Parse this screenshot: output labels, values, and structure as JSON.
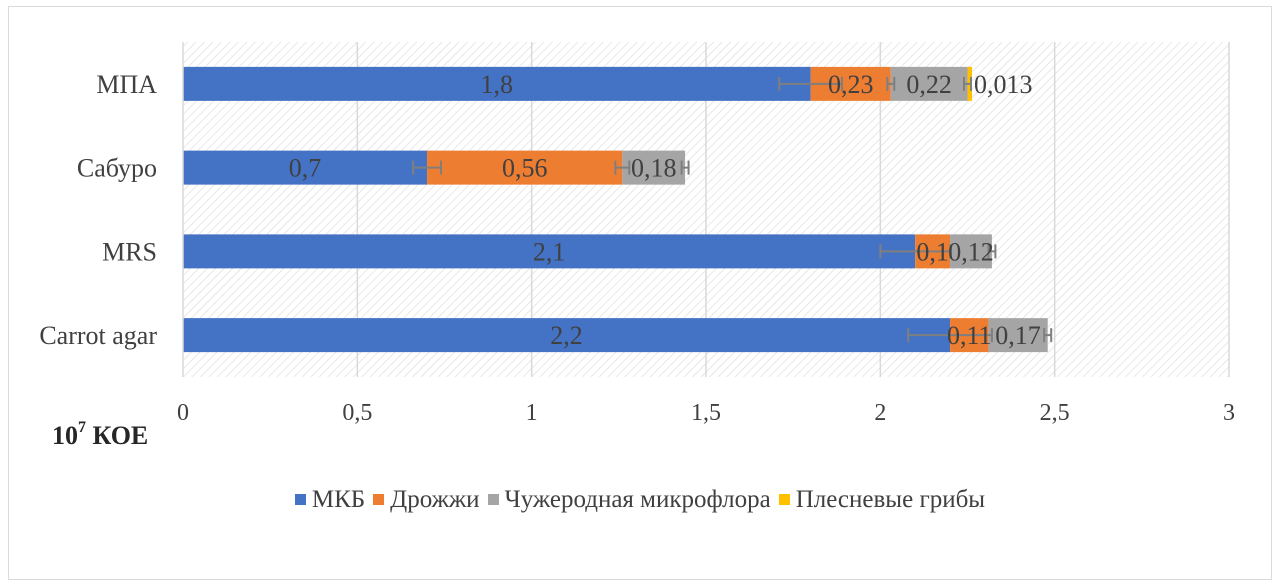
{
  "unit_label": {
    "base": "10",
    "exponent": "7",
    "text": "КОЕ"
  },
  "chart_data": {
    "type": "bar",
    "orientation": "horizontal",
    "stacked": true,
    "title": "",
    "xlabel": "10⁷ КОЕ",
    "ylabel": "",
    "xlim": [
      0,
      3
    ],
    "x_ticks": [
      "0",
      "0,5",
      "1",
      "1,5",
      "2",
      "2,5",
      "3"
    ],
    "grid": true,
    "legend_position": "bottom",
    "categories": [
      "МПА",
      "Сабуро",
      "MRS",
      "Carrot agar"
    ],
    "series": [
      {
        "name": "МКБ",
        "color": "#4472c4",
        "values": [
          1.8,
          0.7,
          2.1,
          2.2
        ],
        "labels": [
          "1,8",
          "0,7",
          "2,1",
          "2,2"
        ],
        "errors": [
          0.09,
          0.04,
          0.1,
          0.12
        ]
      },
      {
        "name": "Дрожжи",
        "color": "#ed7d31",
        "values": [
          0.23,
          0.56,
          0.1,
          0.11
        ],
        "labels": [
          "0,23",
          "0,56",
          "0,1",
          "0,11"
        ],
        "errors": [
          0.01,
          0.02,
          0,
          0
        ]
      },
      {
        "name": "Чужеродная микрофлора",
        "color": "#a5a5a5",
        "values": [
          0.22,
          0.18,
          0.12,
          0.17
        ],
        "labels": [
          "0,22",
          "0,18",
          "0,12",
          "0,17"
        ],
        "errors": [
          0.01,
          0.01,
          0.01,
          0.01
        ]
      },
      {
        "name": "Плесневые грибы",
        "color": "#ffc000",
        "values": [
          0.013,
          0,
          0,
          0
        ],
        "labels": [
          "0,013",
          "",
          "",
          ""
        ],
        "errors": [
          0,
          0,
          0,
          0
        ]
      }
    ]
  }
}
